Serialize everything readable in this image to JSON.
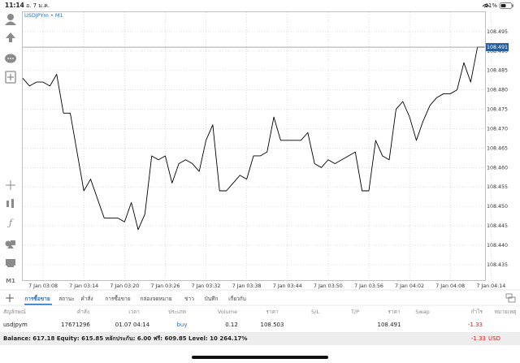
{
  "status_bar": {
    "time": "11:14",
    "date": "อ. 7 ม.ค.",
    "battery": "41%"
  },
  "chart": {
    "type": "line",
    "symbol": "USDJPYm • M1",
    "timeframe_button": "M1",
    "color": "#000000",
    "values": [
      108.483,
      108.481,
      108.482,
      108.482,
      108.481,
      108.484,
      108.474,
      108.474,
      108.464,
      108.454,
      108.457,
      108.452,
      108.447,
      108.447,
      108.447,
      108.446,
      108.451,
      108.444,
      108.448,
      108.463,
      108.462,
      108.463,
      108.456,
      108.461,
      108.462,
      108.461,
      108.459,
      108.467,
      108.471,
      108.454,
      108.454,
      108.456,
      108.458,
      108.457,
      108.463,
      108.463,
      108.464,
      108.473,
      108.467,
      108.467,
      108.467,
      108.467,
      108.469,
      108.461,
      108.46,
      108.462,
      108.461,
      108.462,
      108.463,
      108.464,
      108.454,
      108.454,
      108.467,
      108.463,
      108.462,
      108.475,
      108.477,
      108.473,
      108.467,
      108.472,
      108.476,
      108.478,
      108.479,
      108.479,
      108.48,
      108.487,
      108.482,
      108.491,
      108.491
    ],
    "ylim": [
      108.431,
      108.5
    ],
    "yticks": [
      108.495,
      {
        "value": 108.49,
        "label": "108.490"
      },
      108.485,
      {
        "value": 108.48,
        "label": "108.480"
      },
      108.475,
      {
        "value": 108.47,
        "label": "108.470"
      },
      108.465,
      {
        "value": 108.46,
        "label": "108.460"
      },
      108.455,
      {
        "value": 108.45,
        "label": "108.450"
      },
      108.445,
      {
        "value": 108.44,
        "label": "108.440"
      },
      108.435
    ],
    "xticks": [
      "7 Jan 03:08",
      "7 Jan 03:14",
      "7 Jan 03:20",
      "7 Jan 03:26",
      "7 Jan 03:32",
      "7 Jan 03:38",
      "7 Jan 03:44",
      "7 Jan 03:50",
      "7 Jan 03:56",
      "7 Jan 04:02",
      "7 Jan 04:08",
      "7 Jan 04:14"
    ],
    "current_price": 108.491
  },
  "tabs": [
    "การซื้อขาย",
    "สถานะ",
    "คำสั่ง",
    "การซื้อขาย",
    "กล่องจดหมาย",
    "ข่าว",
    "บันทึก",
    "เกี่ยวกับ"
  ],
  "table": {
    "headers": [
      "สัญลักษณ์",
      "คำสั่ง",
      "เวลา",
      "ประเภท",
      "Volume",
      "ราคา",
      "S/L",
      "T/P",
      "ราคา",
      "Swap",
      "กำไร",
      "หมายเหตุ"
    ],
    "rows": [
      {
        "symbol": "usdjpym",
        "ticket": 17671296,
        "time": "01.07 04:14",
        "type": "buy",
        "volume": 0.12,
        "open_price": 108.503,
        "price": 108.491,
        "profit": -1.33
      }
    ]
  },
  "footer": {
    "summary": "Balance: 617.18 Equity: 615.85 หลักประกัน: 6.00 ฟรี: 609.85 Level: 10 264.17%",
    "profit": -1.33,
    "currency": "USD"
  }
}
